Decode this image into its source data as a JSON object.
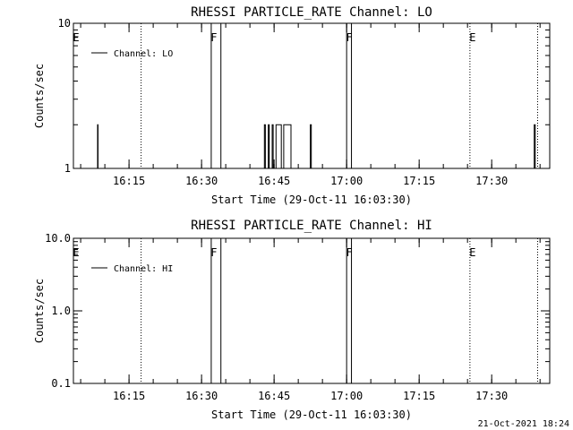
{
  "chart_data": [
    {
      "type": "line",
      "title": "RHESSI PARTICLE_RATE Channel: LO",
      "xlabel": "Start Time (29-Oct-11 16:03:30)",
      "ylabel": "Counts/sec",
      "x_ticks": [
        "16:15",
        "16:30",
        "16:45",
        "17:00",
        "17:15",
        "17:30"
      ],
      "y_ticks": [
        "1",
        "10"
      ],
      "y_scale": "log",
      "ylim": [
        1,
        10
      ],
      "xlim": [
        "16:03:30",
        "17:42:00"
      ],
      "legend": "Channel: LO",
      "legend_position": "top-left",
      "series": [
        {
          "name": "Channel: LO",
          "points": [
            [
              "16:08:30",
              1
            ],
            [
              "16:08:30",
              2
            ],
            [
              "16:08:36",
              2
            ],
            [
              "16:08:36",
              1
            ],
            [
              "16:43:00",
              1
            ],
            [
              "16:43:00",
              2
            ],
            [
              "16:43:12",
              2
            ],
            [
              "16:43:12",
              1
            ],
            [
              "16:43:48",
              1
            ],
            [
              "16:43:48",
              2
            ],
            [
              "16:44:00",
              2
            ],
            [
              "16:44:00",
              1
            ],
            [
              "16:44:36",
              1
            ],
            [
              "16:44:36",
              2
            ],
            [
              "16:44:48",
              2
            ],
            [
              "16:44:48",
              1
            ],
            [
              "16:45:24",
              1
            ],
            [
              "16:45:24",
              2
            ],
            [
              "16:46:30",
              2
            ],
            [
              "16:46:30",
              1
            ],
            [
              "16:47:00",
              1
            ],
            [
              "16:47:00",
              2
            ],
            [
              "16:48:30",
              2
            ],
            [
              "16:48:30",
              1
            ],
            [
              "16:52:30",
              1
            ],
            [
              "16:52:30",
              2
            ],
            [
              "16:52:42",
              2
            ],
            [
              "16:52:42",
              1
            ],
            [
              "17:38:48",
              1
            ],
            [
              "17:38:48",
              2
            ],
            [
              "17:39:00",
              2
            ],
            [
              "17:39:00",
              1
            ]
          ]
        }
      ],
      "markers": [
        {
          "label": "E",
          "time": "16:03:30",
          "style": "none"
        },
        {
          "label": "F",
          "time": "16:32:00",
          "style": "solid"
        },
        {
          "label": "",
          "time": "16:34:00",
          "style": "solid"
        },
        {
          "label": "F",
          "time": "17:00:00",
          "style": "solid"
        },
        {
          "label": "",
          "time": "17:01:00",
          "style": "solid"
        },
        {
          "label": "E",
          "time": "17:25:30",
          "style": "dotted"
        },
        {
          "label": "",
          "time": "16:17:30",
          "style": "dotted"
        },
        {
          "label": "",
          "time": "17:39:30",
          "style": "dotted"
        }
      ]
    },
    {
      "type": "line",
      "title": "RHESSI PARTICLE_RATE Channel: HI",
      "xlabel": "Start Time (29-Oct-11 16:03:30)",
      "ylabel": "Counts/sec",
      "x_ticks": [
        "16:15",
        "16:30",
        "16:45",
        "17:00",
        "17:15",
        "17:30"
      ],
      "y_ticks": [
        "0.1",
        "1.0",
        "10.0"
      ],
      "y_scale": "log",
      "ylim": [
        0.1,
        10
      ],
      "xlim": [
        "16:03:30",
        "17:42:00"
      ],
      "legend": "Channel: HI",
      "legend_position": "top-left",
      "series": [
        {
          "name": "Channel: HI",
          "points": []
        }
      ],
      "markers": [
        {
          "label": "E",
          "time": "16:03:30",
          "style": "none"
        },
        {
          "label": "F",
          "time": "16:32:00",
          "style": "solid"
        },
        {
          "label": "",
          "time": "16:34:00",
          "style": "solid"
        },
        {
          "label": "F",
          "time": "17:00:00",
          "style": "solid"
        },
        {
          "label": "",
          "time": "17:01:00",
          "style": "solid"
        },
        {
          "label": "E",
          "time": "17:25:30",
          "style": "dotted"
        },
        {
          "label": "",
          "time": "16:17:30",
          "style": "dotted"
        },
        {
          "label": "",
          "time": "17:39:30",
          "style": "dotted"
        }
      ]
    }
  ],
  "footer": {
    "timestamp": "21-Oct-2021 18:24"
  }
}
